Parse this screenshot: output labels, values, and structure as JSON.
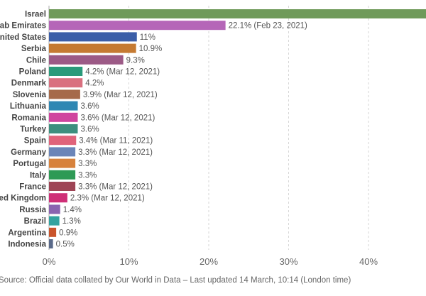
{
  "chart_data": {
    "type": "bar",
    "orientation": "horizontal",
    "xlim": [
      0,
      48
    ],
    "xticks": [
      "0%",
      "10%",
      "20%",
      "30%",
      "40%"
    ],
    "grid": true,
    "bars": [
      {
        "category": "Israel",
        "value": 48,
        "label": "",
        "color": "#6f9a5a"
      },
      {
        "category": "United Arab Emirates",
        "value": 22.1,
        "label": "22.1% (Feb 23, 2021)",
        "color": "#b566b8"
      },
      {
        "category": "United States",
        "value": 11,
        "label": "11%",
        "color": "#3c5ea8"
      },
      {
        "category": "Serbia",
        "value": 10.9,
        "label": "10.9%",
        "color": "#c57a32"
      },
      {
        "category": "Chile",
        "value": 9.3,
        "label": "9.3%",
        "color": "#9c5a86"
      },
      {
        "category": "Poland",
        "value": 4.2,
        "label": "4.2% (Mar 12, 2021)",
        "color": "#2a9a7a"
      },
      {
        "category": "Denmark",
        "value": 4.2,
        "label": "4.2%",
        "color": "#d9707f"
      },
      {
        "category": "Slovenia",
        "value": 3.9,
        "label": "3.9% (Mar 12, 2021)",
        "color": "#a66a4a"
      },
      {
        "category": "Lithuania",
        "value": 3.6,
        "label": "3.6%",
        "color": "#2f87b3"
      },
      {
        "category": "Romania",
        "value": 3.6,
        "label": "3.6% (Mar 12, 2021)",
        "color": "#d0459f"
      },
      {
        "category": "Turkey",
        "value": 3.6,
        "label": "3.6%",
        "color": "#3d8f7e"
      },
      {
        "category": "Spain",
        "value": 3.4,
        "label": "3.4% (Mar 11, 2021)",
        "color": "#e0637a"
      },
      {
        "category": "Germany",
        "value": 3.3,
        "label": "3.3% (Mar 12, 2021)",
        "color": "#6b85b8"
      },
      {
        "category": "Portugal",
        "value": 3.3,
        "label": "3.3%",
        "color": "#d7823c"
      },
      {
        "category": "Italy",
        "value": 3.3,
        "label": "3.3%",
        "color": "#2e9a55"
      },
      {
        "category": "France",
        "value": 3.3,
        "label": "3.3% (Mar 12, 2021)",
        "color": "#9e4455"
      },
      {
        "category": "United Kingdom",
        "value": 2.3,
        "label": "2.3% (Mar 12, 2021)",
        "color": "#cf2f77"
      },
      {
        "category": "Russia",
        "value": 1.4,
        "label": "1.4%",
        "color": "#8a64b0"
      },
      {
        "category": "Brazil",
        "value": 1.3,
        "label": "1.3%",
        "color": "#33a3a0"
      },
      {
        "category": "Argentina",
        "value": 0.9,
        "label": "0.9%",
        "color": "#c9542c"
      },
      {
        "category": "Indonesia",
        "value": 0.5,
        "label": "0.5%",
        "color": "#5a6a8a"
      }
    ]
  },
  "source_note": "Source: Official data collated by Our World in Data – Last updated 14 March, 10:14 (London time)"
}
